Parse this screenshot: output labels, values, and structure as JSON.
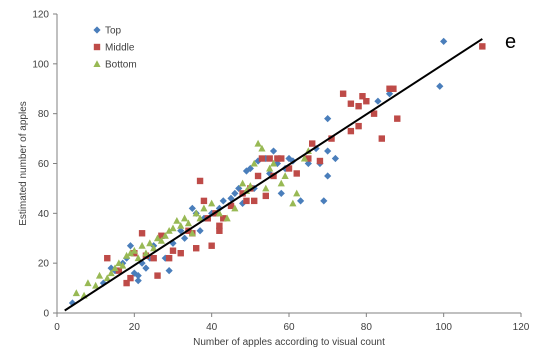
{
  "chart_data": {
    "type": "scatter",
    "xlabel": "Number of apples according to visual count",
    "ylabel": "Estimated number of apples",
    "xlim": [
      0,
      120
    ],
    "ylim": [
      0,
      120
    ],
    "xticks": [
      "0",
      "20",
      "40",
      "60",
      "80",
      "100",
      "120"
    ],
    "yticks": [
      "0",
      "20",
      "40",
      "60",
      "80",
      "100",
      "120"
    ],
    "grid": false,
    "legend_position": "top-left",
    "panel_label": "e",
    "fit_line": {
      "x": [
        2,
        110
      ],
      "y": [
        1,
        110
      ],
      "color": "#000000"
    },
    "series": [
      {
        "name": "Top",
        "marker": "diamond",
        "color": "#4a7ebb",
        "points": [
          [
            4,
            4
          ],
          [
            12,
            12
          ],
          [
            14,
            18
          ],
          [
            15,
            17
          ],
          [
            17,
            20
          ],
          [
            18,
            22
          ],
          [
            19,
            27
          ],
          [
            20,
            16
          ],
          [
            21,
            13
          ],
          [
            21,
            15
          ],
          [
            22,
            20
          ],
          [
            23,
            18
          ],
          [
            24,
            22
          ],
          [
            25,
            27
          ],
          [
            28,
            22
          ],
          [
            29,
            17
          ],
          [
            30,
            28
          ],
          [
            32,
            33
          ],
          [
            33,
            30
          ],
          [
            35,
            42
          ],
          [
            36,
            40
          ],
          [
            37,
            33
          ],
          [
            38,
            38
          ],
          [
            40,
            40
          ],
          [
            42,
            42
          ],
          [
            43,
            45
          ],
          [
            45,
            46
          ],
          [
            46,
            48
          ],
          [
            47,
            50
          ],
          [
            48,
            44
          ],
          [
            49,
            57
          ],
          [
            50,
            58
          ],
          [
            51,
            50
          ],
          [
            52,
            61
          ],
          [
            54,
            62
          ],
          [
            55,
            56
          ],
          [
            56,
            65
          ],
          [
            57,
            60
          ],
          [
            58,
            48
          ],
          [
            59,
            58
          ],
          [
            60,
            62
          ],
          [
            61,
            61
          ],
          [
            63,
            45
          ],
          [
            65,
            60
          ],
          [
            67,
            66
          ],
          [
            68,
            60
          ],
          [
            69,
            45
          ],
          [
            70,
            55
          ],
          [
            70,
            65
          ],
          [
            70,
            78
          ],
          [
            72,
            62
          ],
          [
            83,
            85
          ],
          [
            86,
            88
          ],
          [
            99,
            91
          ],
          [
            100,
            109
          ]
        ]
      },
      {
        "name": "Middle",
        "marker": "square",
        "color": "#be4b48",
        "points": [
          [
            13,
            22
          ],
          [
            16,
            17
          ],
          [
            18,
            12
          ],
          [
            19,
            14
          ],
          [
            20,
            24
          ],
          [
            22,
            32
          ],
          [
            23,
            23
          ],
          [
            25,
            22
          ],
          [
            26,
            15
          ],
          [
            27,
            31
          ],
          [
            29,
            22
          ],
          [
            30,
            25
          ],
          [
            32,
            24
          ],
          [
            34,
            33
          ],
          [
            35,
            32
          ],
          [
            36,
            26
          ],
          [
            37,
            53
          ],
          [
            38,
            45
          ],
          [
            39,
            38
          ],
          [
            40,
            27
          ],
          [
            41,
            40
          ],
          [
            42,
            33
          ],
          [
            42,
            35
          ],
          [
            43,
            38
          ],
          [
            45,
            43
          ],
          [
            48,
            48
          ],
          [
            49,
            45
          ],
          [
            50,
            50
          ],
          [
            51,
            45
          ],
          [
            52,
            55
          ],
          [
            53,
            62
          ],
          [
            54,
            47
          ],
          [
            55,
            62
          ],
          [
            56,
            55
          ],
          [
            57,
            62
          ],
          [
            58,
            62
          ],
          [
            60,
            58
          ],
          [
            62,
            56
          ],
          [
            65,
            62
          ],
          [
            66,
            68
          ],
          [
            68,
            61
          ],
          [
            71,
            70
          ],
          [
            74,
            88
          ],
          [
            76,
            73
          ],
          [
            76,
            84
          ],
          [
            78,
            75
          ],
          [
            78,
            83
          ],
          [
            79,
            87
          ],
          [
            80,
            85
          ],
          [
            82,
            80
          ],
          [
            84,
            70
          ],
          [
            86,
            90
          ],
          [
            87,
            90
          ],
          [
            88,
            78
          ],
          [
            110,
            107
          ]
        ]
      },
      {
        "name": "Bottom",
        "marker": "triangle",
        "color": "#98b954",
        "points": [
          [
            5,
            8
          ],
          [
            7,
            7
          ],
          [
            8,
            12
          ],
          [
            10,
            11
          ],
          [
            11,
            15
          ],
          [
            13,
            14
          ],
          [
            14,
            16
          ],
          [
            15,
            18
          ],
          [
            16,
            20
          ],
          [
            17,
            19
          ],
          [
            18,
            23
          ],
          [
            19,
            24
          ],
          [
            20,
            25
          ],
          [
            21,
            22
          ],
          [
            22,
            27
          ],
          [
            23,
            24
          ],
          [
            24,
            28
          ],
          [
            25,
            26
          ],
          [
            26,
            30
          ],
          [
            27,
            29
          ],
          [
            28,
            31
          ],
          [
            29,
            33
          ],
          [
            30,
            34
          ],
          [
            31,
            37
          ],
          [
            32,
            35
          ],
          [
            33,
            38
          ],
          [
            34,
            36
          ],
          [
            35,
            32
          ],
          [
            36,
            40
          ],
          [
            37,
            38
          ],
          [
            38,
            42
          ],
          [
            40,
            44
          ],
          [
            42,
            40
          ],
          [
            44,
            38
          ],
          [
            46,
            42
          ],
          [
            48,
            52
          ],
          [
            49,
            49
          ],
          [
            50,
            51
          ],
          [
            51,
            60
          ],
          [
            52,
            68
          ],
          [
            53,
            66
          ],
          [
            54,
            50
          ],
          [
            55,
            58
          ],
          [
            56,
            60
          ],
          [
            58,
            52
          ],
          [
            59,
            55
          ],
          [
            61,
            44
          ],
          [
            62,
            48
          ],
          [
            64,
            62
          ],
          [
            65,
            65
          ]
        ]
      }
    ]
  }
}
